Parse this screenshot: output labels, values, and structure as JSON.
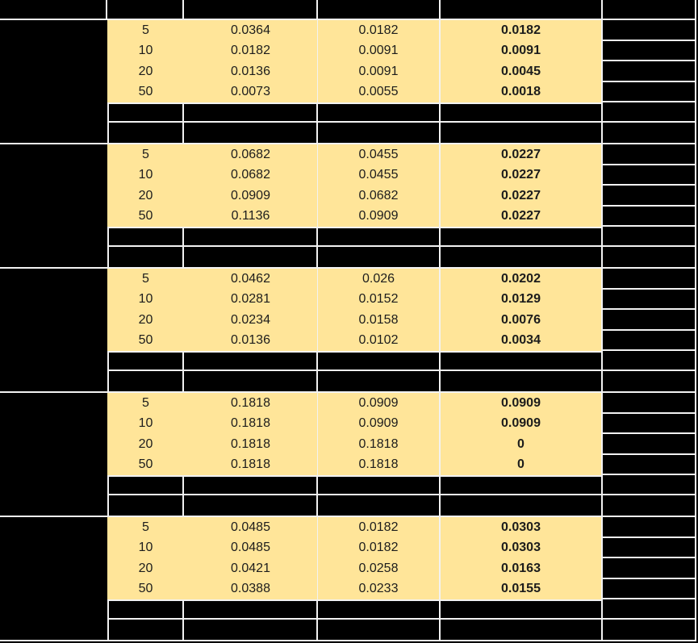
{
  "table": {
    "description": "data table with redacted (blacked-out) header, label and right columns; five row-groups of highlighted numeric rows",
    "colors": {
      "highlight": "#ffe599",
      "redacted": "#000000",
      "gridline": "#f2f2f2",
      "text": "#1c1c1c"
    },
    "columns": {
      "count": 6,
      "redacted_columns": [
        1,
        6
      ],
      "value_columns": [
        2,
        3,
        4,
        5
      ],
      "bold_column": 5
    },
    "groups": [
      {
        "rows": [
          [
            "5",
            "0.0364",
            "0.0182",
            "0.0182"
          ],
          [
            "10",
            "0.0182",
            "0.0091",
            "0.0091"
          ],
          [
            "20",
            "0.0136",
            "0.0091",
            "0.0045"
          ],
          [
            "50",
            "0.0073",
            "0.0055",
            "0.0018"
          ]
        ]
      },
      {
        "rows": [
          [
            "5",
            "0.0682",
            "0.0455",
            "0.0227"
          ],
          [
            "10",
            "0.0682",
            "0.0455",
            "0.0227"
          ],
          [
            "20",
            "0.0909",
            "0.0682",
            "0.0227"
          ],
          [
            "50",
            "0.1136",
            "0.0909",
            "0.0227"
          ]
        ]
      },
      {
        "rows": [
          [
            "5",
            "0.0462",
            "0.026",
            "0.0202"
          ],
          [
            "10",
            "0.0281",
            "0.0152",
            "0.0129"
          ],
          [
            "20",
            "0.0234",
            "0.0158",
            "0.0076"
          ],
          [
            "50",
            "0.0136",
            "0.0102",
            "0.0034"
          ]
        ]
      },
      {
        "rows": [
          [
            "5",
            "0.1818",
            "0.0909",
            "0.0909"
          ],
          [
            "10",
            "0.1818",
            "0.0909",
            "0.0909"
          ],
          [
            "20",
            "0.1818",
            "0.1818",
            "0"
          ],
          [
            "50",
            "0.1818",
            "0.1818",
            "0"
          ]
        ]
      },
      {
        "rows": [
          [
            "5",
            "0.0485",
            "0.0182",
            "0.0303"
          ],
          [
            "10",
            "0.0485",
            "0.0182",
            "0.0303"
          ],
          [
            "20",
            "0.0421",
            "0.0258",
            "0.0163"
          ],
          [
            "50",
            "0.0388",
            "0.0233",
            "0.0155"
          ]
        ]
      }
    ]
  }
}
